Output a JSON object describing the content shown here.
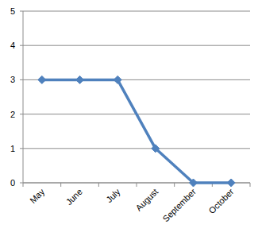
{
  "chart_data": {
    "type": "line",
    "categories": [
      "May",
      "June",
      "July",
      "August",
      "September",
      "October"
    ],
    "values": [
      3,
      3,
      3,
      1,
      0,
      0
    ],
    "color": "#4f81bd",
    "marker": "diamond",
    "ylim": [
      0,
      5
    ],
    "yticks": [
      0,
      1,
      2,
      3,
      4,
      5
    ],
    "grid": true
  }
}
